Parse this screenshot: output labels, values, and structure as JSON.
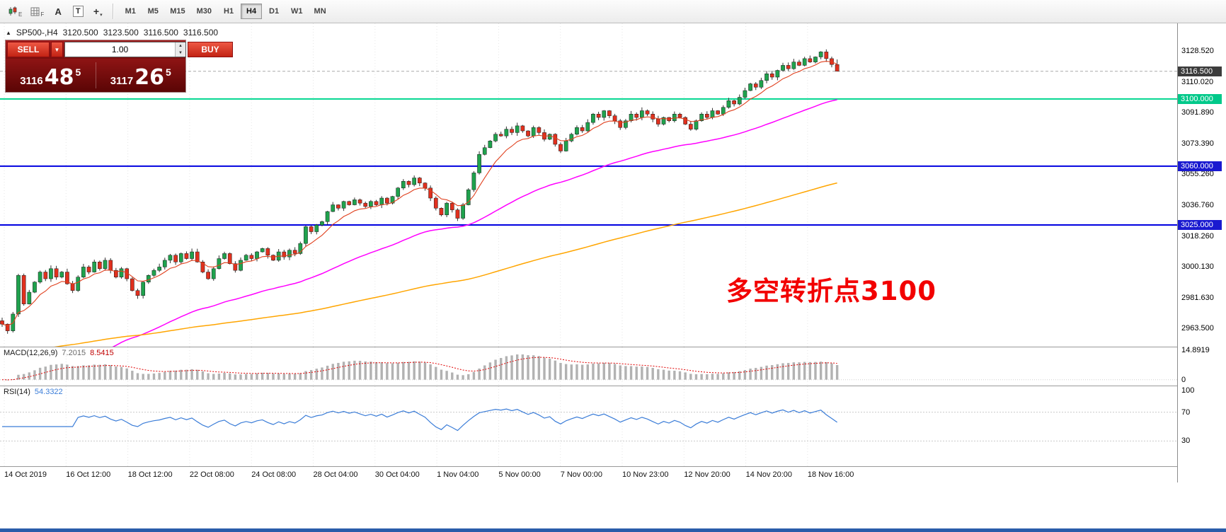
{
  "toolbar": {
    "tool_letters": {
      "e": "E",
      "f": "F",
      "a": "A",
      "t": "T"
    },
    "timeframes": [
      {
        "label": "M1"
      },
      {
        "label": "M5"
      },
      {
        "label": "M15"
      },
      {
        "label": "M30"
      },
      {
        "label": "H1"
      },
      {
        "label": "H4",
        "active": true
      },
      {
        "label": "D1"
      },
      {
        "label": "W1"
      },
      {
        "label": "MN"
      }
    ]
  },
  "quote_header": {
    "symbol_period": "SP500-,H4",
    "open": "3120.500",
    "high": "3123.500",
    "low": "3116.500",
    "close": "3116.500"
  },
  "trade_panel": {
    "sell_label": "SELL",
    "buy_label": "BUY",
    "volume": "1.00",
    "sell_price": {
      "prefix": "3116",
      "big": "48",
      "sup": "5"
    },
    "buy_price": {
      "prefix": "3117",
      "big": "26",
      "sup": "5"
    },
    "colors": {
      "button": "#d93025",
      "panel_bg": "#7a0c0c"
    }
  },
  "annotation": {
    "text": "多空转折点3100",
    "color": "#f20000"
  },
  "macd_panel": {
    "title": "MACD(12,26,9)",
    "value_main": "7.2015",
    "value_signal": "8.5415",
    "axis_ticks": [
      "14.8919",
      "0"
    ]
  },
  "rsi_panel": {
    "title": "RSI(14)",
    "value": "54.3322",
    "axis_ticks": [
      "100",
      "70",
      "30"
    ],
    "levels": [
      70,
      30
    ]
  },
  "chart_data": {
    "type": "candlestick",
    "symbol": "SP500-",
    "timeframe": "H4",
    "current_bar": {
      "open": 3120.5,
      "high": 3123.5,
      "low": 3116.5,
      "close": 3116.5
    },
    "visible_price_range": [
      2952.6,
      3145.0
    ],
    "y_ticks": [
      "3128.520",
      "3110.020",
      "3091.890",
      "3073.390",
      "3055.260",
      "3036.760",
      "3018.260",
      "3000.130",
      "2981.630",
      "2963.500"
    ],
    "time_labels": [
      "14 Oct 2019",
      "16 Oct 12:00",
      "18 Oct 12:00",
      "22 Oct 08:00",
      "24 Oct 08:00",
      "28 Oct 04:00",
      "30 Oct 04:00",
      "1 Nov 04:00",
      "5 Nov 00:00",
      "7 Nov 00:00",
      "10 Nov 23:00",
      "12 Nov 20:00",
      "14 Nov 20:00",
      "18 Nov 16:00"
    ],
    "hlines": [
      {
        "price": 3100,
        "label": "3100.000",
        "color": "#00d68f",
        "badge_bg": "#00c98a",
        "badge_fg": "#ffffff"
      },
      {
        "price": 3060,
        "label": "3060.000",
        "color": "#0000e0",
        "badge_bg": "#1a1ad0",
        "badge_fg": "#ffffff"
      },
      {
        "price": 3025,
        "label": "3025.000",
        "color": "#0000e0",
        "badge_bg": "#1a1ad0",
        "badge_fg": "#ffffff"
      }
    ],
    "current_price_badge": {
      "price": 3116.5,
      "label": "3116.500",
      "badge_bg": "#3c3c3c",
      "badge_fg": "#ffffff"
    },
    "first_open": 2968,
    "closes": [
      2966,
      2962,
      2972,
      2995,
      2978,
      2985,
      2991,
      2997,
      2993,
      2999,
      2994,
      2997,
      2990,
      2986,
      2994,
      3000,
      2997,
      3003,
      2999,
      3004,
      2998,
      2994,
      2999,
      2993,
      2986,
      2983,
      2991,
      2995,
      2998,
      3000,
      3004,
      3007,
      3003,
      3008,
      3005,
      3009,
      3003,
      2997,
      2993,
      2999,
      3005,
      3008,
      3002,
      2998,
      3004,
      3007,
      3005,
      3009,
      3011,
      3007,
      3004,
      3009,
      3006,
      3010,
      3008,
      3014,
      3024,
      3021,
      3025,
      3027,
      3033,
      3037,
      3035,
      3039,
      3037,
      3040,
      3038,
      3036,
      3039,
      3037,
      3041,
      3038,
      3042,
      3047,
      3051,
      3049,
      3053,
      3050,
      3047,
      3041,
      3035,
      3031,
      3038,
      3034,
      3029,
      3037,
      3046,
      3056,
      3067,
      3071,
      3075,
      3079,
      3078,
      3082,
      3080,
      3084,
      3081,
      3078,
      3083,
      3080,
      3076,
      3079,
      3073,
      3069,
      3075,
      3079,
      3083,
      3081,
      3086,
      3091,
      3089,
      3093,
      3090,
      3087,
      3083,
      3087,
      3091,
      3089,
      3093,
      3091,
      3088,
      3085,
      3089,
      3087,
      3091,
      3089,
      3085,
      3082,
      3087,
      3091,
      3089,
      3093,
      3091,
      3095,
      3099,
      3097,
      3101,
      3105,
      3109,
      3107,
      3111,
      3115,
      3113,
      3117,
      3120,
      3118,
      3122,
      3120,
      3124,
      3122,
      3125,
      3128,
      3124,
      3120.5,
      3116.5
    ],
    "colors": {
      "up": "#1fa24d",
      "down": "#e1301e",
      "ma_fast": "#e0401e",
      "ma_mid": "#ff00ff",
      "ma_slow": "#ffa500",
      "macd_hist": "#b2b2b2",
      "macd_signal": "#e00000",
      "rsi_line": "#3b7dd8"
    }
  }
}
